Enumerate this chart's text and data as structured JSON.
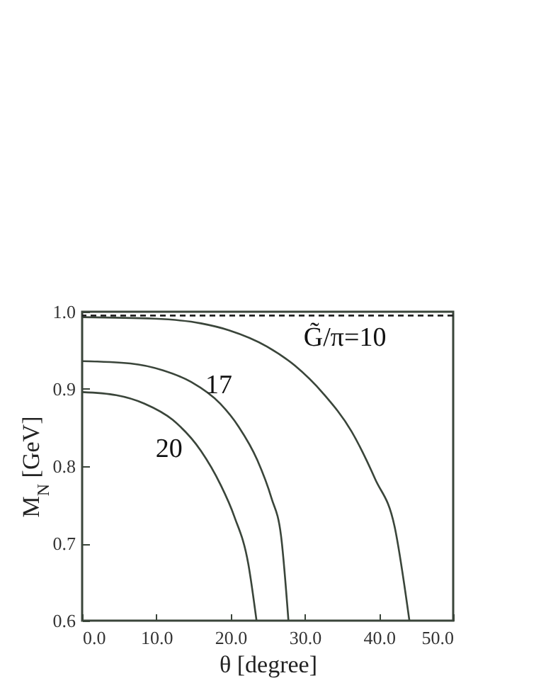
{
  "chart_data": {
    "type": "line",
    "xlabel": "θ [degree]",
    "ylabel": "M$_{N}$ [GeV]",
    "xlim": [
      0,
      50
    ],
    "ylim": [
      0.6,
      1.0
    ],
    "xticks": [
      {
        "value": 0,
        "label": "0.0"
      },
      {
        "value": 10,
        "label": "10.0"
      },
      {
        "value": 20,
        "label": "20.0"
      },
      {
        "value": 30,
        "label": "30.0"
      },
      {
        "value": 40,
        "label": "40.0"
      },
      {
        "value": 50,
        "label": "50.0"
      }
    ],
    "yticks": [
      0.6,
      0.7,
      0.8,
      0.9,
      {
        "value": 1,
        "label": "1.0"
      }
    ],
    "grid": false,
    "line_style": "solid",
    "marker": "none",
    "ref_lines": [
      {
        "axis": "y",
        "value": 0.995,
        "color": "#222222",
        "line_style": "dashed"
      }
    ],
    "series": [
      {
        "name": "G̃/π=10",
        "color": "#3a453a",
        "x": [
          0,
          9.7,
          16,
          19.8,
          24.9,
          28.7,
          32.5,
          36.3,
          39.5,
          42.1,
          44.1
        ],
        "values": [
          0.993,
          0.991,
          0.985,
          0.976,
          0.955,
          0.93,
          0.894,
          0.845,
          0.783,
          0.722,
          0.6
        ]
      },
      {
        "name": "17",
        "color": "#3a453a",
        "x": [
          0,
          6.5,
          10.9,
          14.7,
          18.6,
          21.1,
          23.6,
          25.5,
          26.8,
          27.8
        ],
        "values": [
          0.936,
          0.933,
          0.924,
          0.909,
          0.881,
          0.851,
          0.808,
          0.759,
          0.71,
          0.6
        ]
      },
      {
        "name": "20",
        "color": "#3a453a",
        "x": [
          0,
          4.6,
          8.4,
          12.2,
          16,
          18.6,
          20.5,
          22.4,
          23.5
        ],
        "values": [
          0.896,
          0.892,
          0.881,
          0.86,
          0.82,
          0.777,
          0.735,
          0.673,
          0.6
        ]
      }
    ]
  }
}
